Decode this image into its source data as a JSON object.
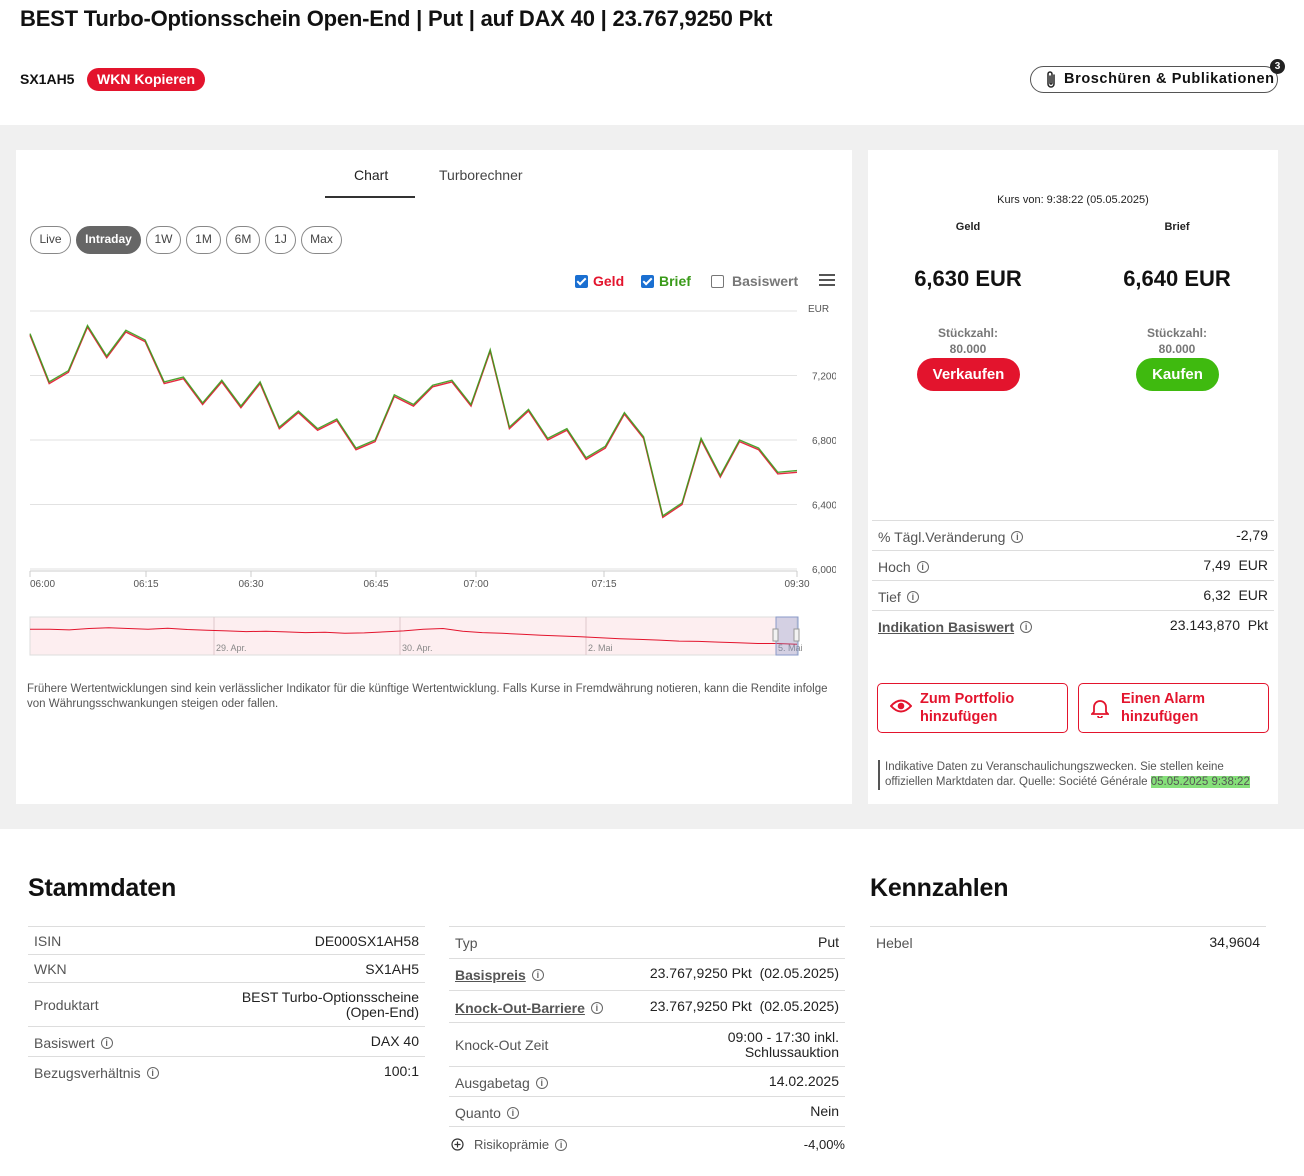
{
  "header": {
    "title": "BEST Turbo-Optionsschein Open-End | Put | auf DAX 40 | 23.767,9250 Pkt",
    "wkn": "SX1AH5",
    "copy_label": "WKN Kopieren",
    "publications_label": "Broschüren & Publikationen",
    "publications_count": "3"
  },
  "chart_tabs": [
    {
      "label": "Chart",
      "active": true
    },
    {
      "label": "Turborechner",
      "active": false
    }
  ],
  "ranges": [
    "Live",
    "Intraday",
    "1W",
    "1M",
    "6M",
    "1J",
    "Max"
  ],
  "active_range": "Intraday",
  "legend": {
    "geld": {
      "label": "Geld",
      "checked": true,
      "color": "#e3142d"
    },
    "brief": {
      "label": "Brief",
      "checked": true,
      "color": "#3a9a1a"
    },
    "basiswert": {
      "label": "Basiswert",
      "checked": false,
      "color": "#777777"
    }
  },
  "chart_data": {
    "type": "line",
    "ylabel": "EUR",
    "yticks": [
      "6,000",
      "6,400",
      "6,800",
      "7,200"
    ],
    "ylim": [
      6.0,
      7.6
    ],
    "xticks": [
      "06:00",
      "06:15",
      "06:30",
      "06:45",
      "07:00",
      "07:15",
      "09:30"
    ],
    "series": [
      {
        "name": "Geld",
        "color": "#e3142d",
        "values": [
          7.45,
          7.15,
          7.22,
          7.5,
          7.31,
          7.47,
          7.41,
          7.15,
          7.18,
          7.02,
          7.16,
          7.0,
          7.15,
          6.87,
          6.97,
          6.86,
          6.92,
          6.74,
          6.79,
          7.07,
          7.01,
          7.13,
          7.16,
          7.01,
          7.35,
          6.87,
          6.98,
          6.8,
          6.86,
          6.68,
          6.75,
          6.96,
          6.81,
          6.32,
          6.4,
          6.8,
          6.57,
          6.79,
          6.74,
          6.59,
          6.6
        ]
      },
      {
        "name": "Brief",
        "color": "#3a9a1a",
        "values": [
          7.46,
          7.16,
          7.23,
          7.51,
          7.32,
          7.48,
          7.42,
          7.16,
          7.19,
          7.03,
          7.17,
          7.01,
          7.16,
          6.88,
          6.98,
          6.87,
          6.93,
          6.75,
          6.8,
          7.08,
          7.02,
          7.14,
          7.17,
          7.02,
          7.36,
          6.88,
          6.99,
          6.81,
          6.87,
          6.69,
          6.76,
          6.97,
          6.82,
          6.33,
          6.41,
          6.81,
          6.58,
          6.8,
          6.75,
          6.6,
          6.61
        ]
      }
    ],
    "navigator_labels": [
      "29. Apr.",
      "30. Apr.",
      "2. Mai",
      "5. Mai"
    ]
  },
  "disclaimer": "Frühere Wertentwicklungen sind kein verlässlicher Indikator für die künftige Wertentwicklung. Falls Kurse in Fremdwährung notieren, kann die Rendite infolge von Währungsschwankungen steigen oder fallen.",
  "quote": {
    "kurs_von": "Kurs von: 9:38:22 (05.05.2025)",
    "geld_label": "Geld",
    "brief_label": "Brief",
    "geld_price": "6,630 EUR",
    "brief_price": "6,640 EUR",
    "stk_label": "Stückzahl:",
    "geld_stk": "80.000",
    "brief_stk": "80.000",
    "sell_label": "Verkaufen",
    "buy_label": "Kaufen"
  },
  "quote_stats": [
    {
      "label": "% Tägl.Veränderung",
      "value": "-2,79",
      "unit": "",
      "info": true,
      "link": false
    },
    {
      "label": "Hoch",
      "value": "7,49",
      "unit": "EUR",
      "info": true,
      "link": false
    },
    {
      "label": "Tief",
      "value": "6,32",
      "unit": "EUR",
      "info": true,
      "link": false
    },
    {
      "label": "Indikation Basiswert",
      "value": "23.143,870",
      "unit": "Pkt",
      "info": true,
      "link": true
    }
  ],
  "actions": {
    "portfolio": "Zum Portfolio hinzufügen",
    "alarm": "Einen Alarm hinzufügen"
  },
  "note": {
    "text": "Indikative Daten zu Veranschaulichungszwecken. Sie stellen keine offiziellen Marktdaten dar. Quelle: Société Générale ",
    "timestamp": "05.05.2025 9:38:22"
  },
  "stammdaten": {
    "title": "Stammdaten",
    "left": [
      {
        "label": "ISIN",
        "value": "DE000SX1AH58"
      },
      {
        "label": "WKN",
        "value": "SX1AH5"
      },
      {
        "label": "Produktart",
        "value": "BEST Turbo-Optionsscheine (Open-End)"
      },
      {
        "label": "Basiswert",
        "value": "DAX 40",
        "info": true
      },
      {
        "label": "Bezugsverhältnis",
        "value": "100:1",
        "info": true
      }
    ],
    "right": [
      {
        "label": "Typ",
        "value": "Put"
      },
      {
        "label": "Basispreis",
        "value": "23.767,9250 Pkt  (02.05.2025)",
        "info": true,
        "link": true
      },
      {
        "label": "Knock-Out-Barriere",
        "value": "23.767,9250 Pkt  (02.05.2025)",
        "info": true,
        "link": true
      },
      {
        "label": "Knock-Out Zeit",
        "value": "09:00 - 17:30 inkl. Schlussauktion"
      },
      {
        "label": "Ausgabetag",
        "value": "14.02.2025",
        "info": true
      },
      {
        "label": "Quanto",
        "value": "Nein",
        "info": true
      },
      {
        "label": "Risikoprämie",
        "value": "-4,00%",
        "info": true
      }
    ]
  },
  "kennzahlen": {
    "title": "Kennzahlen",
    "rows": [
      {
        "label": "Hebel",
        "value": "34,9604"
      }
    ]
  }
}
